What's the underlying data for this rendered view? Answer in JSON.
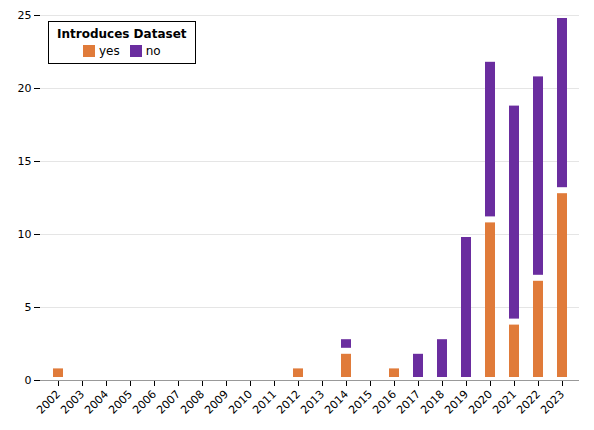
{
  "chart_data": {
    "type": "bar",
    "stacked": true,
    "categories": [
      "2002",
      "2003",
      "2004",
      "2005",
      "2006",
      "2007",
      "2008",
      "2009",
      "2010",
      "2011",
      "2012",
      "2013",
      "2014",
      "2015",
      "2016",
      "2017",
      "2018",
      "2019",
      "2020",
      "2021",
      "2022",
      "2023"
    ],
    "series": [
      {
        "name": "yes",
        "color": "#E07B3A",
        "values": [
          1,
          0,
          0,
          0,
          0,
          0,
          0,
          0,
          0,
          0,
          1,
          0,
          2,
          0,
          1,
          0,
          0,
          0,
          11,
          4,
          7,
          13
        ]
      },
      {
        "name": "no",
        "color": "#6A2D9F",
        "values": [
          0,
          0,
          0,
          0,
          0,
          0,
          0,
          0,
          0,
          0,
          0,
          0,
          1,
          0,
          0,
          2,
          3,
          10,
          11,
          15,
          14,
          12
        ]
      }
    ],
    "legend_title": "Introduces Dataset",
    "legend": "upper left",
    "ylim": [
      0,
      25
    ],
    "yticks": [
      0,
      5,
      10,
      15,
      20,
      25
    ],
    "grid": true
  }
}
